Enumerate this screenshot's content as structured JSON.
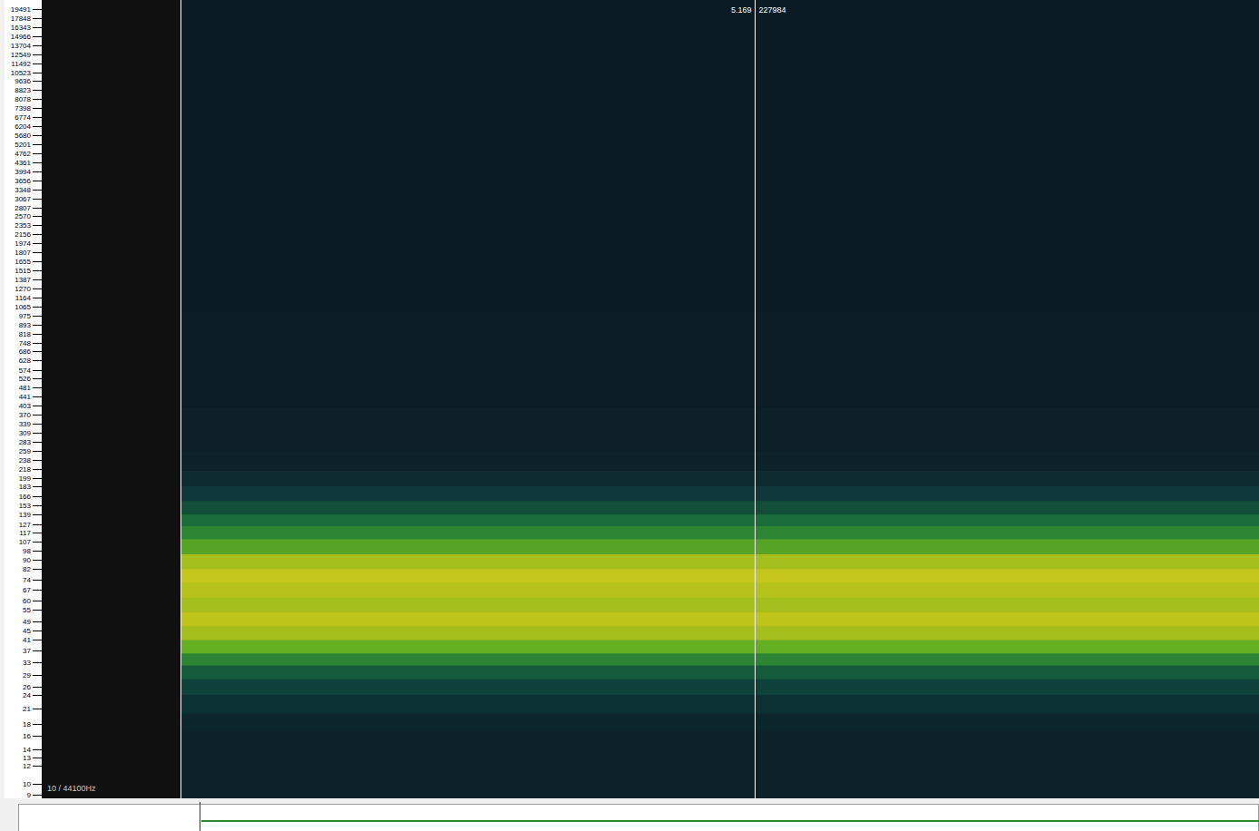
{
  "chart_data": {
    "type": "spectrogram",
    "log": "y",
    "ylim": [
      8.7,
      21300
    ],
    "yticks": [
      19491,
      17848,
      16343,
      14966,
      13704,
      12549,
      11492,
      10523,
      9636,
      8823,
      8078,
      7398,
      6774,
      6204,
      5680,
      5201,
      4762,
      4361,
      3994,
      3656,
      3348,
      3067,
      2807,
      2570,
      2353,
      2156,
      1974,
      1807,
      1655,
      1515,
      1387,
      1270,
      1164,
      1065,
      975,
      893,
      818,
      748,
      686,
      628,
      574,
      526,
      481,
      441,
      403,
      370,
      339,
      309,
      283,
      259,
      238,
      218,
      199,
      183,
      166,
      153,
      139,
      127,
      117,
      107,
      98,
      90,
      82,
      74,
      67,
      60,
      55,
      49,
      45,
      41,
      37,
      33,
      29,
      26,
      24,
      21,
      18,
      16,
      14,
      13,
      12,
      10,
      9
    ],
    "xlim": [
      0,
      9.72
    ],
    "freq_edges": [
      8.7,
      11,
      14,
      17,
      20,
      24,
      28,
      32,
      36,
      41,
      47,
      54,
      62,
      72,
      82,
      95,
      110,
      125,
      140,
      160,
      185,
      215,
      260,
      400,
      1000,
      21300
    ],
    "levels": [
      0.1,
      0.1,
      0.1,
      0.12,
      0.2,
      0.28,
      0.38,
      0.55,
      0.72,
      0.85,
      0.9,
      0.85,
      0.88,
      0.92,
      0.85,
      0.68,
      0.55,
      0.45,
      0.33,
      0.24,
      0.15,
      0.1,
      0.07,
      0.06,
      0.05
    ],
    "cursor": {
      "time": 5.169,
      "sample": 227984
    },
    "info": "10 / 44100Hz"
  }
}
